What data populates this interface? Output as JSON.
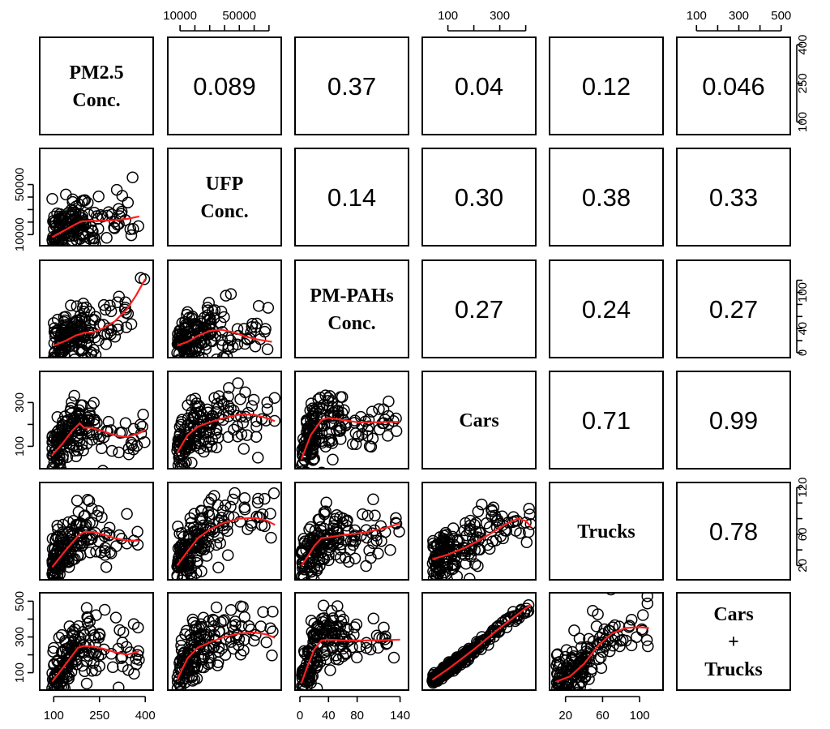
{
  "chart_data": {
    "type": "scatter",
    "layout": "pairs-matrix",
    "variables": [
      "PM2.5 Conc.",
      "UFP Conc.",
      "PM-PAHs Conc.",
      "Cars",
      "Trucks",
      "Cars + Trucks"
    ],
    "diagonal_labels": [
      [
        "PM2.5",
        "Conc."
      ],
      [
        "UFP",
        "Conc."
      ],
      [
        "PM-PAHs",
        "Conc."
      ],
      [
        "Cars"
      ],
      [
        "Trucks"
      ],
      [
        "Cars",
        "+",
        "Trucks"
      ]
    ],
    "correlations": [
      {
        "row": 0,
        "col": 1,
        "label": "0.089"
      },
      {
        "row": 0,
        "col": 2,
        "label": "0.37"
      },
      {
        "row": 0,
        "col": 3,
        "label": "0.04"
      },
      {
        "row": 0,
        "col": 4,
        "label": "0.12"
      },
      {
        "row": 0,
        "col": 5,
        "label": "0.046"
      },
      {
        "row": 1,
        "col": 2,
        "label": "0.14"
      },
      {
        "row": 1,
        "col": 3,
        "label": "0.30"
      },
      {
        "row": 1,
        "col": 4,
        "label": "0.38"
      },
      {
        "row": 1,
        "col": 5,
        "label": "0.33"
      },
      {
        "row": 2,
        "col": 3,
        "label": "0.27"
      },
      {
        "row": 2,
        "col": 4,
        "label": "0.24"
      },
      {
        "row": 2,
        "col": 5,
        "label": "0.27"
      },
      {
        "row": 3,
        "col": 4,
        "label": "0.71"
      },
      {
        "row": 3,
        "col": 5,
        "label": "0.99"
      },
      {
        "row": 4,
        "col": 5,
        "label": "0.78"
      }
    ],
    "ranges": [
      [
        70,
        410
      ],
      [
        5000,
        75000
      ],
      [
        0,
        145
      ],
      [
        20,
        420
      ],
      [
        8,
        120
      ],
      [
        30,
        520
      ]
    ],
    "axes": [
      {
        "var": 0,
        "side": "bottom",
        "ticks": [
          100,
          250,
          400
        ],
        "labels": [
          "100",
          "250",
          "400"
        ]
      },
      {
        "var": 2,
        "side": "bottom",
        "ticks": [
          0,
          40,
          80,
          140
        ],
        "labels": [
          "0",
          "40",
          "80",
          "140"
        ]
      },
      {
        "var": 4,
        "side": "bottom",
        "ticks": [
          20,
          60,
          100
        ],
        "labels": [
          "20",
          "60",
          "100"
        ]
      },
      {
        "var": 1,
        "side": "top",
        "ticks": [
          10000,
          20000,
          30000,
          40000,
          50000,
          60000,
          70000
        ],
        "labels": [
          "10000",
          "",
          "",
          "",
          "50000",
          "",
          ""
        ]
      },
      {
        "var": 3,
        "side": "top",
        "ticks": [
          100,
          200,
          300,
          400
        ],
        "labels": [
          "100",
          "",
          "300",
          ""
        ]
      },
      {
        "var": 5,
        "side": "top",
        "ticks": [
          100,
          200,
          300,
          400,
          500
        ],
        "labels": [
          "100",
          "",
          "300",
          "",
          "500"
        ]
      },
      {
        "var": 1,
        "side": "left",
        "ticks": [
          10000,
          20000,
          30000,
          40000,
          50000
        ],
        "labels": [
          "10000",
          "",
          "",
          "",
          "50000"
        ]
      },
      {
        "var": 3,
        "side": "left",
        "ticks": [
          100,
          200,
          300
        ],
        "labels": [
          "100",
          "",
          "300"
        ]
      },
      {
        "var": 5,
        "side": "left",
        "ticks": [
          100,
          200,
          300,
          400,
          500
        ],
        "labels": [
          "100",
          "",
          "300",
          "",
          "500"
        ]
      },
      {
        "var": 0,
        "side": "right",
        "ticks": [
          100,
          250,
          400
        ],
        "labels": [
          "100",
          "250",
          "400"
        ]
      },
      {
        "var": 2,
        "side": "right",
        "ticks": [
          0,
          20,
          40,
          60,
          80,
          100,
          120
        ],
        "labels": [
          "0",
          "",
          "40",
          "",
          "",
          "100",
          ""
        ]
      },
      {
        "var": 4,
        "side": "right",
        "ticks": [
          20,
          40,
          60,
          80,
          100,
          120
        ],
        "labels": [
          "20",
          "",
          "60",
          "",
          "",
          "120"
        ]
      }
    ],
    "smooth_lines": [
      {
        "row": 1,
        "col": 0,
        "x": [
          95,
          140,
          170,
          190,
          220,
          260,
          300,
          340,
          380
        ],
        "y": [
          8000,
          14000,
          18000,
          20500,
          21000,
          21000,
          21500,
          22500,
          24500
        ]
      },
      {
        "row": 2,
        "col": 0,
        "x": [
          100,
          140,
          170,
          200,
          230,
          260,
          300,
          340,
          370,
          400
        ],
        "y": [
          12,
          20,
          28,
          33,
          34,
          40,
          52,
          72,
          95,
          122
        ]
      },
      {
        "row": 2,
        "col": 1,
        "x": [
          8000,
          15000,
          22000,
          30000,
          38000,
          46000,
          54000,
          62000,
          72000
        ],
        "y": [
          12,
          18,
          28,
          36,
          38,
          34,
          27,
          22,
          18
        ]
      },
      {
        "row": 3,
        "col": 0,
        "x": [
          95,
          130,
          160,
          185,
          200,
          220,
          260,
          300,
          340,
          380,
          400
        ],
        "y": [
          60,
          115,
          170,
          205,
          185,
          185,
          170,
          150,
          142,
          160,
          175
        ]
      },
      {
        "row": 3,
        "col": 1,
        "x": [
          8000,
          15000,
          22000,
          30000,
          40000,
          50000,
          60000,
          70000,
          74000
        ],
        "y": [
          70,
          150,
          190,
          210,
          230,
          245,
          245,
          225,
          215
        ]
      },
      {
        "row": 3,
        "col": 2,
        "x": [
          2,
          15,
          30,
          40,
          60,
          80,
          110,
          140
        ],
        "y": [
          40,
          150,
          220,
          230,
          220,
          210,
          210,
          212
        ]
      },
      {
        "row": 4,
        "col": 0,
        "x": [
          95,
          140,
          180,
          200,
          230,
          260,
          300,
          340,
          380
        ],
        "y": [
          18,
          40,
          58,
          63,
          63,
          60,
          55,
          52,
          52
        ]
      },
      {
        "row": 4,
        "col": 1,
        "x": [
          8000,
          15000,
          22000,
          30000,
          40000,
          50000,
          60000,
          68000,
          74000
        ],
        "y": [
          20,
          38,
          55,
          66,
          75,
          80,
          81,
          78,
          72
        ]
      },
      {
        "row": 4,
        "col": 2,
        "x": [
          2,
          10,
          20,
          30,
          40,
          60,
          90,
          120,
          140
        ],
        "y": [
          20,
          30,
          45,
          55,
          56,
          59,
          62,
          68,
          74
        ]
      },
      {
        "row": 4,
        "col": 3,
        "x": [
          40,
          100,
          160,
          220,
          280,
          330,
          370,
          400,
          420
        ],
        "y": [
          28,
          34,
          42,
          52,
          64,
          74,
          80,
          77,
          70
        ]
      },
      {
        "row": 5,
        "col": 0,
        "x": [
          95,
          140,
          180,
          200,
          230,
          260,
          300,
          340,
          380
        ],
        "y": [
          50,
          150,
          240,
          250,
          245,
          235,
          215,
          200,
          220
        ]
      },
      {
        "row": 5,
        "col": 1,
        "x": [
          8000,
          15000,
          22000,
          30000,
          40000,
          50000,
          60000,
          68000,
          74000
        ],
        "y": [
          60,
          180,
          240,
          270,
          300,
          320,
          325,
          315,
          295
        ]
      },
      {
        "row": 5,
        "col": 2,
        "x": [
          2,
          10,
          20,
          30,
          40,
          60,
          90,
          120,
          140
        ],
        "y": [
          40,
          130,
          230,
          280,
          285,
          280,
          280,
          282,
          285
        ]
      },
      {
        "row": 5,
        "col": 3,
        "x": [
          40,
          100,
          200,
          300,
          400,
          420
        ],
        "y": [
          60,
          120,
          230,
          350,
          460,
          480
        ]
      },
      {
        "row": 5,
        "col": 4,
        "x": [
          10,
          25,
          40,
          55,
          70,
          85,
          100,
          110
        ],
        "y": [
          50,
          80,
          150,
          250,
          320,
          350,
          355,
          350
        ]
      }
    ]
  }
}
